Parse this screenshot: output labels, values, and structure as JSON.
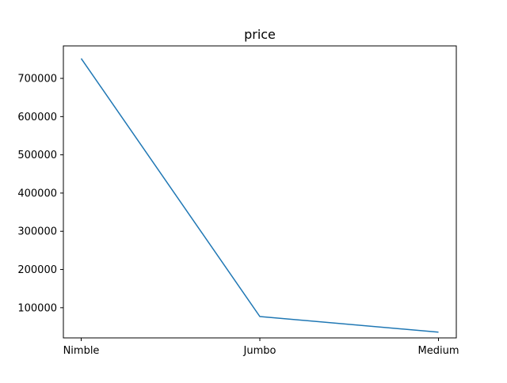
{
  "chart_data": {
    "type": "line",
    "title": "price",
    "xlabel": "",
    "ylabel": "",
    "categories": [
      "Nimble",
      "Jumbo",
      "Medium"
    ],
    "series": [
      {
        "values": [
          752000,
          77000,
          36000
        ],
        "color": "#1f77b4"
      }
    ],
    "ylim": [
      21000,
      785000
    ],
    "yticks": [
      100000,
      200000,
      300000,
      400000,
      500000,
      600000,
      700000
    ],
    "ytick_labels": [
      "100000",
      "200000",
      "300000",
      "400000",
      "500000",
      "600000",
      "700000"
    ],
    "grid": false,
    "legend": "none"
  }
}
